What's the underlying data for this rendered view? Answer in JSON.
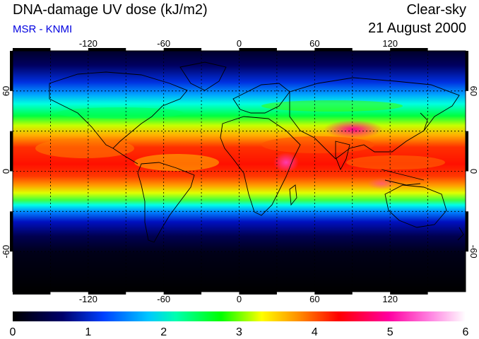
{
  "header": {
    "title": "DNA-damage UV dose (kJ/m2)",
    "credit": "MSR - KNMI",
    "condition": "Clear-sky",
    "date": "21 August 2000"
  },
  "map": {
    "projection": "equirectangular",
    "lon_range": [
      -180,
      180
    ],
    "lat_range": [
      -90,
      90
    ],
    "lon_ticks": [
      "-120",
      "-60",
      "0",
      "60",
      "120"
    ],
    "lat_ticks": [
      "60",
      "0",
      "-60"
    ],
    "gridlines": "dashed, every 30 degrees"
  },
  "colorbar": {
    "ticks": [
      "0",
      "1",
      "2",
      "3",
      "4",
      "5",
      "6"
    ],
    "colors": [
      "#000000",
      "#00008b",
      "#0050ff",
      "#00ffff",
      "#00ff00",
      "#ffff00",
      "#ff8000",
      "#ff0000",
      "#ff00a0",
      "#ffffff"
    ]
  }
}
